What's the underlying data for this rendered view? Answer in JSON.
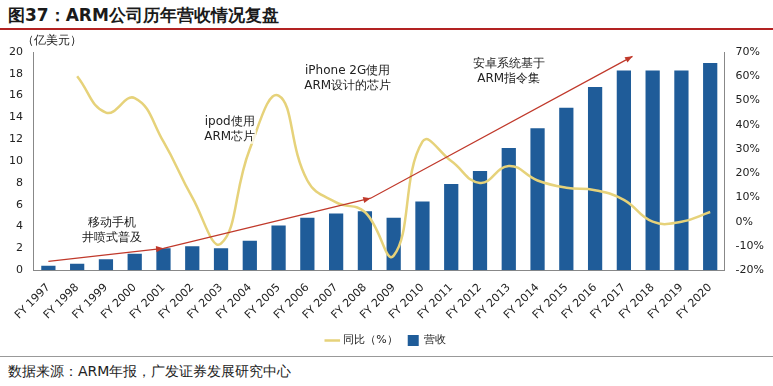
{
  "chart_data": {
    "type": "bar",
    "title": "图37：ARM公司历年营收情况复盘",
    "y_label": "（亿美元）",
    "source": "数据来源：ARM年报，广发证券发展研究中心",
    "categories": [
      "FY 1997",
      "FY 1998",
      "FY 1999",
      "FY 2000",
      "FY 2001",
      "FY 2002",
      "FY 2003",
      "FY 2004",
      "FY 2005",
      "FY 2006",
      "FY 2007",
      "FY 2008",
      "FY 2009",
      "FY 2010",
      "FY 2011",
      "FY 2012",
      "FY 2013",
      "FY 2014",
      "FY 2015",
      "FY 2016",
      "FY 2017",
      "FY 2018",
      "FY 2019",
      "FY 2020"
    ],
    "series": [
      {
        "name": "营收",
        "type": "bar",
        "color": "#1f5c99",
        "values": [
          0.4,
          0.6,
          1.0,
          1.5,
          2.0,
          2.2,
          2.0,
          2.7,
          4.1,
          4.8,
          5.2,
          5.4,
          4.8,
          6.3,
          7.9,
          9.1,
          11.2,
          13.0,
          14.9,
          16.8,
          18.3,
          18.3,
          18.3,
          19.0
        ]
      },
      {
        "name": "同比（%）",
        "type": "line",
        "color": "#e6d27a",
        "axis": "y2",
        "marker": "none",
        "line_style": "smooth",
        "values": [
          null,
          60,
          45,
          51,
          33,
          10,
          -9,
          30,
          52,
          17,
          8,
          4,
          -14,
          33,
          25,
          16,
          23,
          17,
          14,
          13,
          9,
          0,
          0,
          4
        ]
      }
    ],
    "ylim": [
      0,
      20
    ],
    "yticks": [
      0,
      2,
      4,
      6,
      8,
      10,
      12,
      14,
      16,
      18,
      20
    ],
    "y2lim": [
      -20,
      70
    ],
    "y2ticks": [
      {
        "value": -20,
        "label": "-20%"
      },
      {
        "value": -10,
        "label": "-10%"
      },
      {
        "value": 0,
        "label": "0%"
      },
      {
        "value": 10,
        "label": "10%"
      },
      {
        "value": 20,
        "label": "20%"
      },
      {
        "value": 30,
        "label": "30%"
      },
      {
        "value": 40,
        "label": "40%"
      },
      {
        "value": 50,
        "label": "50%"
      },
      {
        "value": 60,
        "label": "60%"
      },
      {
        "value": 70,
        "label": "70%"
      }
    ],
    "annotations": [
      [
        "移动手机",
        "井喷式普及"
      ],
      [
        "ipod使用",
        "ARM芯片"
      ],
      [
        "iPhone 2G使用",
        "ARM设计的芯片"
      ],
      [
        "安卓系统基于",
        "ARM指令集"
      ]
    ],
    "grid": false,
    "legend": "bottom"
  }
}
